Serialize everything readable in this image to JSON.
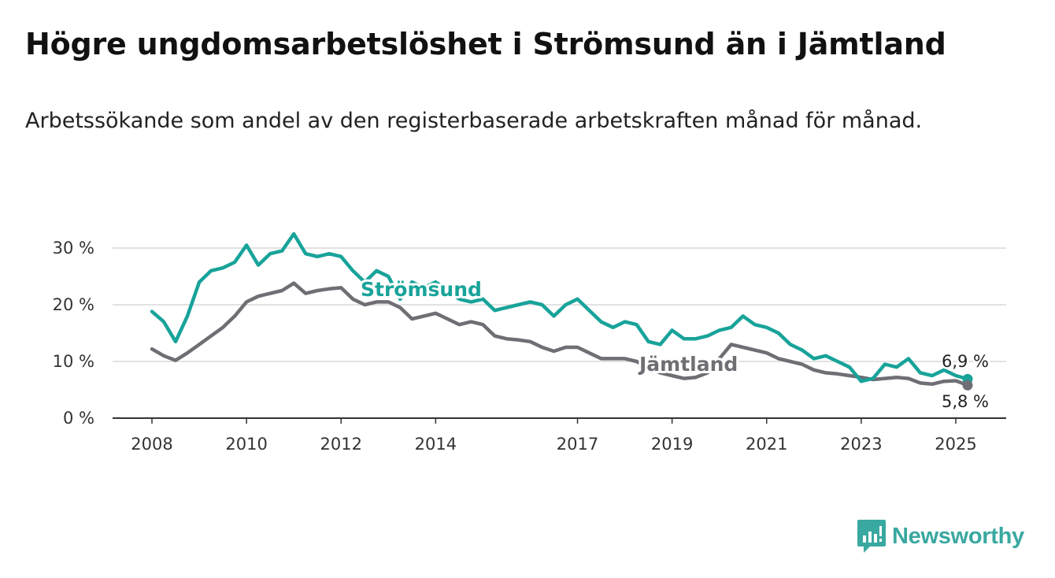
{
  "title": "Högre ungdomsarbetslöshet i Strömsund än i Jämtland",
  "subtitle": "Arbetssökande som andel av den registerbaserade arbetskraften månad för månad.",
  "logo": {
    "text": "Newsworthy",
    "icon": "bar-chart-speech-bubble-icon",
    "color": "#39a8a0"
  },
  "chart_data": {
    "type": "line",
    "title": "Högre ungdomsarbetslöshet i Strömsund än i Jämtland",
    "xlabel": "",
    "ylabel": "",
    "xlim": [
      2008,
      2025.3
    ],
    "ylim": [
      0,
      30
    ],
    "grid": "horizontal",
    "legend": "direct-labels",
    "x_ticks": [
      "2008",
      "2010",
      "2012",
      "2014",
      "2017",
      "2019",
      "2021",
      "2023",
      "2025"
    ],
    "y_ticks": [
      "0 %",
      "10 %",
      "20 %",
      "30 %"
    ],
    "x": [
      2008.0,
      2008.25,
      2008.5,
      2008.75,
      2009.0,
      2009.25,
      2009.5,
      2009.75,
      2010.0,
      2010.25,
      2010.5,
      2010.75,
      2011.0,
      2011.25,
      2011.5,
      2011.75,
      2012.0,
      2012.25,
      2012.5,
      2012.75,
      2013.0,
      2013.25,
      2013.5,
      2013.75,
      2014.0,
      2014.25,
      2014.5,
      2014.75,
      2015.0,
      2015.25,
      2015.5,
      2015.75,
      2016.0,
      2016.25,
      2016.5,
      2016.75,
      2017.0,
      2017.25,
      2017.5,
      2017.75,
      2018.0,
      2018.25,
      2018.5,
      2018.75,
      2019.0,
      2019.25,
      2019.5,
      2019.75,
      2020.0,
      2020.25,
      2020.5,
      2020.75,
      2021.0,
      2021.25,
      2021.5,
      2021.75,
      2022.0,
      2022.25,
      2022.5,
      2022.75,
      2023.0,
      2023.25,
      2023.5,
      2023.75,
      2024.0,
      2024.25,
      2024.5,
      2024.75,
      2025.0,
      2025.25
    ],
    "series": [
      {
        "name": "Strömsund",
        "color": "#18a39a",
        "end_value": 6.9,
        "end_label": "6,9 %",
        "values": [
          18.8,
          17.0,
          13.5,
          18.0,
          24.0,
          26.0,
          26.5,
          27.5,
          30.5,
          27.0,
          29.0,
          29.5,
          32.5,
          29.0,
          28.5,
          29.0,
          28.5,
          26.0,
          24.0,
          26.0,
          25.0,
          21.0,
          24.0,
          23.0,
          24.0,
          22.5,
          21.0,
          20.5,
          21.0,
          19.0,
          19.5,
          20.0,
          20.5,
          20.0,
          18.0,
          20.0,
          21.0,
          19.0,
          17.0,
          16.0,
          17.0,
          16.5,
          13.5,
          13.0,
          15.5,
          14.0,
          14.0,
          14.5,
          15.5,
          16.0,
          18.0,
          16.5,
          16.0,
          15.0,
          13.0,
          12.0,
          10.5,
          11.0,
          10.0,
          9.0,
          6.5,
          7.0,
          9.5,
          9.0,
          10.5,
          8.0,
          7.5,
          8.5,
          7.5,
          6.9
        ]
      },
      {
        "name": "Jämtland",
        "color": "#6f6e74",
        "end_value": 5.8,
        "end_label": "5,8 %",
        "values": [
          12.2,
          11.0,
          10.2,
          11.5,
          13.0,
          14.5,
          16.0,
          18.0,
          20.5,
          21.5,
          22.0,
          22.5,
          23.8,
          22.0,
          22.5,
          22.8,
          23.0,
          21.0,
          20.0,
          20.5,
          20.5,
          19.5,
          17.5,
          18.0,
          18.5,
          17.5,
          16.5,
          17.0,
          16.5,
          14.5,
          14.0,
          13.8,
          13.5,
          12.5,
          11.8,
          12.5,
          12.5,
          11.5,
          10.5,
          10.5,
          10.5,
          10.0,
          8.8,
          8.0,
          7.5,
          7.0,
          7.2,
          8.0,
          10.5,
          13.0,
          12.5,
          12.0,
          11.5,
          10.5,
          10.0,
          9.5,
          8.5,
          8.0,
          7.8,
          7.5,
          7.2,
          6.8,
          7.0,
          7.2,
          7.0,
          6.2,
          6.0,
          6.5,
          6.6,
          5.8
        ]
      }
    ]
  }
}
